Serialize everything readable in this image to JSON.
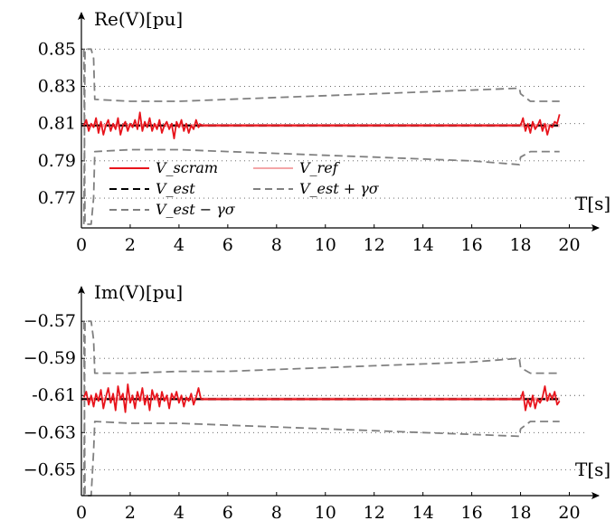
{
  "chart_data": [
    {
      "type": "line",
      "ylabel": "Re(V)[pu]",
      "xlabel": "T[s]",
      "xlim": [
        0,
        20.5
      ],
      "ylim": [
        0.754,
        0.855
      ],
      "xticks": [
        0,
        2,
        4,
        6,
        8,
        10,
        12,
        14,
        16,
        18,
        20
      ],
      "xtick_labels": [
        "0",
        "2",
        "4",
        "6",
        "8",
        "10",
        "12",
        "14",
        "16",
        "18",
        "20"
      ],
      "yticks": [
        0.85,
        0.83,
        0.81,
        0.79,
        0.77
      ],
      "ytick_labels": [
        "0.85",
        "0.83",
        "0.81",
        "0.79",
        "0.77"
      ],
      "grid": "horizontal-dotted",
      "legend": {
        "placement": "bottom-left",
        "entries": [
          {
            "label": "V_scram",
            "color": "#e8141c",
            "style": "solid"
          },
          {
            "label": "V_ref",
            "color": "#f4a6a8",
            "style": "solid"
          },
          {
            "label": "V_est",
            "color": "#000000",
            "style": "dashed"
          },
          {
            "label": "V_est + γσ",
            "color": "#808080",
            "style": "dashed"
          },
          {
            "label": "V_est − γσ",
            "color": "#808080",
            "style": "dashed"
          }
        ]
      },
      "series": [
        {
          "name": "V_ref",
          "color": "#f4a6a8",
          "x": [
            0,
            19.6
          ],
          "y": [
            0.809,
            0.809
          ]
        },
        {
          "name": "V_est",
          "color": "#000000",
          "x": [
            0,
            19.6
          ],
          "y": [
            0.809,
            0.809
          ]
        },
        {
          "name": "V_scram",
          "color": "#e8141c",
          "segments": [
            {
              "x": [
                0.1,
                0.2,
                0.3,
                0.4,
                0.5,
                0.6,
                0.7,
                0.8,
                0.9,
                1.0,
                1.1,
                1.2,
                1.3,
                1.4,
                1.5,
                1.6,
                1.7,
                1.8,
                1.9,
                2.0,
                2.1,
                2.2,
                2.3,
                2.4,
                2.5,
                2.6,
                2.7,
                2.8,
                2.9,
                3.0,
                3.1,
                3.2,
                3.3,
                3.4,
                3.5,
                3.6,
                3.7,
                3.8,
                3.9,
                4.0,
                4.1,
                4.2,
                4.3,
                4.4,
                4.5,
                4.6,
                4.7,
                4.8,
                4.9
              ],
              "y": [
                0.809,
                0.812,
                0.806,
                0.81,
                0.808,
                0.813,
                0.805,
                0.811,
                0.804,
                0.809,
                0.812,
                0.806,
                0.81,
                0.807,
                0.813,
                0.804,
                0.809,
                0.811,
                0.806,
                0.81,
                0.808,
                0.812,
                0.807,
                0.816,
                0.806,
                0.811,
                0.808,
                0.813,
                0.806,
                0.81,
                0.807,
                0.812,
                0.805,
                0.809,
                0.811,
                0.807,
                0.81,
                0.802,
                0.811,
                0.808,
                0.812,
                0.806,
                0.81,
                0.805,
                0.809,
                0.807,
                0.812,
                0.808,
                0.81
              ]
            },
            {
              "x": [
                4.9,
                18.0
              ],
              "y": [
                0.809,
                0.809
              ]
            },
            {
              "x": [
                18.0,
                18.1,
                18.2,
                18.3,
                18.4,
                18.5,
                18.6,
                18.7,
                18.8,
                18.9,
                19.0,
                19.1,
                19.2,
                19.3,
                19.4,
                19.5,
                19.6
              ],
              "y": [
                0.809,
                0.813,
                0.806,
                0.81,
                0.805,
                0.811,
                0.807,
                0.809,
                0.812,
                0.806,
                0.81,
                0.804,
                0.809,
                0.808,
                0.811,
                0.81,
                0.815
              ]
            }
          ]
        },
        {
          "name": "V_est + γσ",
          "color": "#808080",
          "x": [
            0.1,
            0.15,
            0.4,
            0.5,
            0.55,
            2.0,
            4.0,
            6.0,
            8.0,
            10.0,
            12.0,
            14.0,
            16.0,
            17.95,
            18.0,
            18.4,
            19.6
          ],
          "y": [
            0.756,
            0.85,
            0.85,
            0.845,
            0.823,
            0.822,
            0.822,
            0.823,
            0.824,
            0.825,
            0.826,
            0.827,
            0.828,
            0.829,
            0.826,
            0.822,
            0.822
          ]
        },
        {
          "name": "V_est − γσ",
          "color": "#808080",
          "x": [
            0.1,
            0.15,
            0.4,
            0.5,
            0.55,
            2.0,
            4.0,
            6.0,
            8.0,
            10.0,
            12.0,
            14.0,
            16.0,
            17.95,
            18.0,
            18.4,
            19.6
          ],
          "y": [
            0.85,
            0.756,
            0.756,
            0.77,
            0.795,
            0.796,
            0.796,
            0.795,
            0.794,
            0.793,
            0.792,
            0.791,
            0.79,
            0.788,
            0.792,
            0.795,
            0.795
          ]
        }
      ]
    },
    {
      "type": "line",
      "ylabel": "Im(V)[pu]",
      "xlabel": "T[s]",
      "xlim": [
        0,
        20.5
      ],
      "ylim": [
        -0.664,
        -0.566
      ],
      "xticks": [
        0,
        2,
        4,
        6,
        8,
        10,
        12,
        14,
        16,
        18,
        20
      ],
      "xtick_labels": [
        "0",
        "2",
        "4",
        "6",
        "8",
        "10",
        "12",
        "14",
        "16",
        "18",
        "20"
      ],
      "yticks": [
        -0.57,
        -0.59,
        -0.61,
        -0.63,
        -0.65
      ],
      "ytick_labels": [
        "−0.57",
        "−0.59",
        "-0.61",
        "−0.63",
        "−0.65"
      ],
      "grid": "horizontal-dotted",
      "series": [
        {
          "name": "V_ref",
          "color": "#f4a6a8",
          "x": [
            0,
            19.6
          ],
          "y": [
            -0.612,
            -0.612
          ]
        },
        {
          "name": "V_est",
          "color": "#000000",
          "x": [
            0,
            19.6
          ],
          "y": [
            -0.612,
            -0.612
          ]
        },
        {
          "name": "V_scram",
          "color": "#e8141c",
          "segments": [
            {
              "x": [
                0.1,
                0.2,
                0.3,
                0.4,
                0.5,
                0.6,
                0.7,
                0.8,
                0.9,
                1.0,
                1.1,
                1.2,
                1.3,
                1.4,
                1.5,
                1.6,
                1.7,
                1.8,
                1.9,
                2.0,
                2.1,
                2.2,
                2.3,
                2.4,
                2.5,
                2.6,
                2.7,
                2.8,
                2.9,
                3.0,
                3.1,
                3.2,
                3.3,
                3.4,
                3.5,
                3.6,
                3.7,
                3.8,
                3.9,
                4.0,
                4.1,
                4.2,
                4.3,
                4.4,
                4.5,
                4.6,
                4.7,
                4.8,
                4.9
              ],
              "y": [
                -0.611,
                -0.608,
                -0.615,
                -0.61,
                -0.616,
                -0.609,
                -0.613,
                -0.607,
                -0.617,
                -0.611,
                -0.606,
                -0.614,
                -0.609,
                -0.618,
                -0.605,
                -0.612,
                -0.609,
                -0.619,
                -0.604,
                -0.614,
                -0.61,
                -0.617,
                -0.608,
                -0.613,
                -0.606,
                -0.615,
                -0.61,
                -0.618,
                -0.607,
                -0.612,
                -0.609,
                -0.616,
                -0.608,
                -0.613,
                -0.61,
                -0.617,
                -0.609,
                -0.612,
                -0.608,
                -0.614,
                -0.61,
                -0.616,
                -0.611,
                -0.613,
                -0.609,
                -0.615,
                -0.611,
                -0.606,
                -0.612
              ]
            },
            {
              "x": [
                4.9,
                18.0
              ],
              "y": [
                -0.612,
                -0.612
              ]
            },
            {
              "x": [
                18.0,
                18.1,
                18.2,
                18.3,
                18.4,
                18.5,
                18.6,
                18.7,
                18.8,
                18.9,
                19.0,
                19.1,
                19.2,
                19.3,
                19.4,
                19.5,
                19.6
              ],
              "y": [
                -0.612,
                -0.608,
                -0.618,
                -0.612,
                -0.616,
                -0.61,
                -0.617,
                -0.612,
                -0.614,
                -0.611,
                -0.605,
                -0.613,
                -0.609,
                -0.612,
                -0.608,
                -0.615,
                -0.613
              ]
            }
          ]
        },
        {
          "name": "V_est + γσ",
          "color": "#808080",
          "x": [
            0.1,
            0.15,
            0.4,
            0.5,
            0.55,
            2.0,
            4.0,
            6.0,
            8.0,
            10.0,
            12.0,
            14.0,
            16.0,
            17.95,
            18.0,
            18.4,
            19.6
          ],
          "y": [
            -0.664,
            -0.57,
            -0.57,
            -0.58,
            -0.598,
            -0.598,
            -0.597,
            -0.597,
            -0.596,
            -0.595,
            -0.594,
            -0.593,
            -0.592,
            -0.59,
            -0.595,
            -0.598,
            -0.598
          ]
        },
        {
          "name": "V_est − γσ",
          "color": "#808080",
          "x": [
            0.1,
            0.15,
            0.4,
            0.5,
            0.55,
            2.0,
            4.0,
            6.0,
            8.0,
            10.0,
            12.0,
            14.0,
            16.0,
            17.95,
            18.0,
            18.4,
            19.6
          ],
          "y": [
            -0.57,
            -0.664,
            -0.664,
            -0.64,
            -0.624,
            -0.625,
            -0.625,
            -0.626,
            -0.627,
            -0.628,
            -0.629,
            -0.63,
            -0.631,
            -0.632,
            -0.628,
            -0.624,
            -0.624
          ]
        }
      ]
    }
  ]
}
